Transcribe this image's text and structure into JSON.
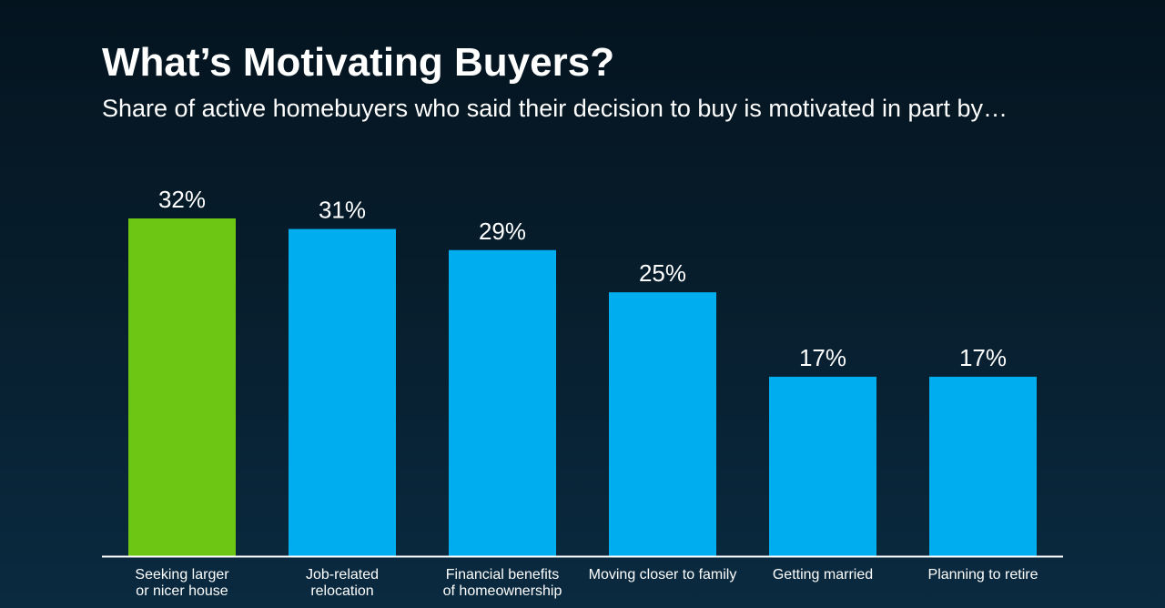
{
  "title": "What’s Motivating Buyers?",
  "subtitle": "Share of active homebuyers who said their decision to buy is motivated in part by…",
  "colors": {
    "highlight": "#6ec614",
    "bar": "#00aeef",
    "axis": "#ffffff"
  },
  "chart_data": {
    "type": "bar",
    "categories": [
      [
        "Seeking larger",
        "or nicer house"
      ],
      [
        "Job-related",
        "relocation"
      ],
      [
        "Financial benefits",
        "of homeownership"
      ],
      [
        "Moving closer to family"
      ],
      [
        "Getting married"
      ],
      [
        "Planning to retire"
      ]
    ],
    "values": [
      32,
      31,
      29,
      25,
      17,
      17
    ],
    "value_labels": [
      "32%",
      "31%",
      "29%",
      "25%",
      "17%",
      "17%"
    ],
    "highlight_index": 0,
    "ylim": [
      0,
      32
    ],
    "grid": false,
    "legend": "none"
  }
}
